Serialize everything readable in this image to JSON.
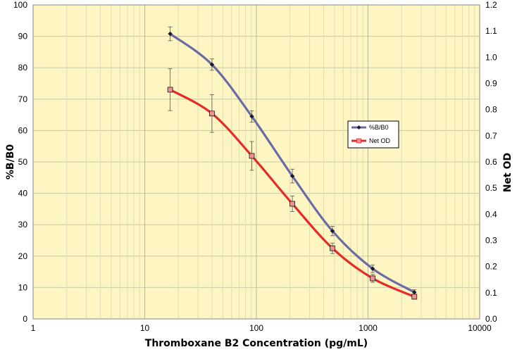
{
  "chart_data": {
    "type": "line",
    "xlabel": "Thromboxane B2 Concentration (pg/mL)",
    "ylabel_left": "%B/B0",
    "ylabel_right": "Net OD",
    "x_scale": "log",
    "xlim": [
      1,
      10000
    ],
    "ylim_left": [
      0,
      100
    ],
    "ylim_right": [
      0,
      1.2
    ],
    "x_tick_labels": [
      "1",
      "10",
      "100",
      "1000",
      "10000"
    ],
    "y_left_tick_labels": [
      "0",
      "10",
      "20",
      "30",
      "40",
      "50",
      "60",
      "70",
      "80",
      "90",
      "100"
    ],
    "y_right_tick_labels": [
      "0.0",
      "0.1",
      "0.2",
      "0.3",
      "0.4",
      "0.5",
      "0.6",
      "0.7",
      "0.8",
      "0.9",
      "1.0",
      "1.1",
      "1.2"
    ],
    "grid": true,
    "legend_position": "center-right",
    "background_color": "#fdf6c3",
    "series": [
      {
        "name": "%B/B0",
        "axis": "left",
        "color": "#6a6aa6",
        "x": [
          16.9,
          40,
          91,
          210,
          480,
          1100,
          2600
        ],
        "y": [
          90.8,
          81,
          64.5,
          45.5,
          28,
          16,
          8.5
        ],
        "err": [
          2.2,
          1.8,
          1.8,
          2.2,
          1.5,
          1.2,
          0.8
        ]
      },
      {
        "name": "Net OD",
        "axis": "right",
        "color": "#e62a2a",
        "x": [
          16.9,
          40,
          91,
          210,
          480,
          1100,
          2600
        ],
        "y": [
          0.876,
          0.785,
          0.623,
          0.44,
          0.27,
          0.155,
          0.085
        ],
        "err": [
          0.08,
          0.072,
          0.055,
          0.03,
          0.02,
          0.015,
          0.01
        ]
      }
    ]
  }
}
